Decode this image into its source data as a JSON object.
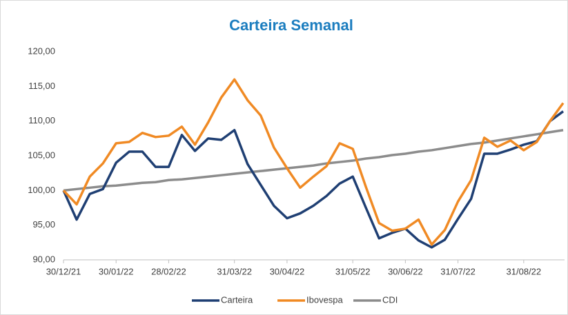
{
  "chart_data": {
    "type": "line",
    "title": "Carteira Semanal",
    "categories": [
      "30/12/21",
      null,
      null,
      null,
      "30/01/22",
      null,
      null,
      null,
      "28/02/22",
      null,
      null,
      null,
      null,
      "31/03/22",
      null,
      null,
      null,
      "30/04/22",
      null,
      null,
      null,
      null,
      "31/05/22",
      null,
      null,
      null,
      "30/06/22",
      null,
      null,
      null,
      "31/07/22",
      null,
      null,
      null,
      null,
      "31/08/22",
      null,
      null,
      null
    ],
    "series": [
      {
        "name": "Carteira",
        "color": "#1f3f73",
        "values": [
          100,
          95.8,
          99.5,
          100.2,
          104,
          105.6,
          105.6,
          103.4,
          103.4,
          108,
          105.7,
          107.5,
          107.3,
          108.7,
          103.8,
          100.8,
          97.8,
          96,
          96.7,
          97.8,
          99.2,
          101,
          102,
          97.5,
          93.1,
          93.9,
          94.5,
          92.8,
          91.8,
          92.9,
          95.9,
          98.8,
          105.3,
          105.3,
          105.9,
          106.6,
          107.1,
          110,
          111.4
        ]
      },
      {
        "name": "Ibovespa",
        "color": "#f08a24",
        "values": [
          100,
          98,
          102,
          103.9,
          106.8,
          107,
          108.3,
          107.7,
          107.9,
          109.2,
          106.6,
          109.8,
          113.4,
          116,
          113,
          110.8,
          106.2,
          103.2,
          100.4,
          102,
          103.5,
          106.8,
          106,
          100.5,
          95.3,
          94.2,
          94.5,
          95.8,
          92.2,
          94.3,
          98.4,
          101.5,
          107.6,
          106.3,
          107.2,
          105.8,
          107,
          110,
          112.6
        ]
      },
      {
        "name": "CDI",
        "color": "#8c8c8c",
        "values": [
          100.0,
          100.2,
          100.4,
          100.6,
          100.7,
          100.9,
          101.1,
          101.2,
          101.5,
          101.6,
          101.8,
          102.0,
          102.2,
          102.4,
          102.6,
          102.8,
          103.0,
          103.2,
          103.4,
          103.6,
          103.9,
          104.1,
          104.3,
          104.6,
          104.8,
          105.1,
          105.3,
          105.6,
          105.8,
          106.1,
          106.4,
          106.7,
          106.9,
          107.2,
          107.5,
          107.8,
          108.1,
          108.4,
          108.7
        ]
      }
    ],
    "ylim": [
      90,
      120
    ],
    "yticks": [
      {
        "value": 90,
        "label": "90,00"
      },
      {
        "value": 95,
        "label": "95,00"
      },
      {
        "value": 100,
        "label": "100,00"
      },
      {
        "value": 105,
        "label": "105,00"
      },
      {
        "value": 110,
        "label": "110,00"
      },
      {
        "value": 115,
        "label": "115,00"
      },
      {
        "value": 120,
        "label": "120,00"
      }
    ],
    "legend": "bottom"
  }
}
